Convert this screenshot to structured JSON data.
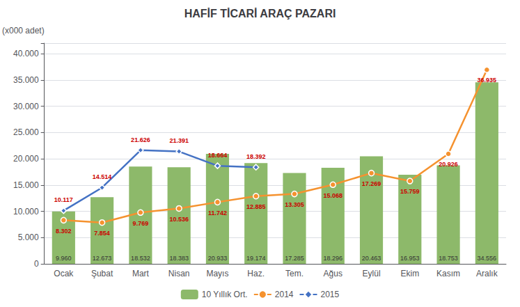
{
  "chart_data": {
    "type": "bar",
    "title": "HAFİF TİCARİ ARAÇ PAZARI",
    "ylabel": "(x000 adet)",
    "categories": [
      "Ocak",
      "Şubat",
      "Mart",
      "Nisan",
      "Mayıs",
      "Haz.",
      "Tem.",
      "Ağus",
      "Eylül",
      "Ekim",
      "Kasım",
      "Aralık"
    ],
    "series": [
      {
        "name": "10 Yıllık Ort.",
        "type": "bar",
        "color": "#8db96a",
        "values": [
          9960,
          12673,
          18532,
          18383,
          20933,
          19174,
          17285,
          18296,
          20463,
          16953,
          18753,
          34556
        ],
        "value_labels": [
          "9.960",
          "12.673",
          "18.532",
          "18.383",
          "20.933",
          "19.174",
          "17.285",
          "18.296",
          "20.463",
          "16.953",
          "18.753",
          "34.556"
        ]
      },
      {
        "name": "2014",
        "type": "line",
        "color": "#f5922f",
        "marker": "circle",
        "values": [
          8302,
          7854,
          9769,
          10536,
          11742,
          12885,
          13305,
          15068,
          17269,
          15759,
          20926,
          36935
        ],
        "value_labels": [
          "8.302",
          "7.854",
          "9.769",
          "10.536",
          "11.742",
          "12.885",
          "13.305",
          "15.068",
          "17.269",
          "15.759",
          "20.926",
          "36.935"
        ]
      },
      {
        "name": "2015",
        "type": "line",
        "color": "#4472c4",
        "marker": "diamond",
        "values": [
          10117,
          14514,
          21626,
          21391,
          18664,
          18392,
          null,
          null,
          null,
          null,
          null,
          null
        ],
        "value_labels": [
          "10.117",
          "14.514",
          "21.626",
          "21.391",
          "18.664",
          "18.392",
          null,
          null,
          null,
          null,
          null,
          null
        ]
      }
    ],
    "ylim": [
      0,
      42000
    ],
    "yticks": [
      0,
      {
        "value": 5000,
        "label": "5.000"
      },
      {
        "value": 10000,
        "label": "10.000"
      },
      {
        "value": 15000,
        "label": "15.000"
      },
      {
        "value": 20000,
        "label": "20.000"
      },
      {
        "value": 25000,
        "label": "25.000"
      },
      {
        "value": 30000,
        "label": "30.000"
      },
      {
        "value": 35000,
        "label": "35.000"
      },
      {
        "value": 40000,
        "label": "40.000"
      }
    ],
    "grid": true,
    "legend": "bottom",
    "data_labels": true
  }
}
